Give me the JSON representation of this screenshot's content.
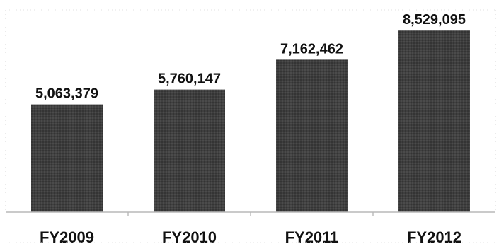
{
  "chart_data": {
    "type": "bar",
    "categories": [
      "FY2009",
      "FY2010",
      "FY2011",
      "FY2012"
    ],
    "values": [
      5063379,
      5760147,
      7162462,
      8529095
    ],
    "value_labels": [
      "5,063,379",
      "5,760,147",
      "7,162,462",
      "8,529,095"
    ],
    "ylim": [
      0,
      9500000
    ],
    "title": "",
    "xlabel": "",
    "ylabel": "",
    "grid": false,
    "legend": "none",
    "colors": {
      "bar_fill": "#3f3f3f",
      "bar_texture": "#2c2c2c",
      "axis": "#b8b8b8",
      "text": "#111111"
    }
  }
}
